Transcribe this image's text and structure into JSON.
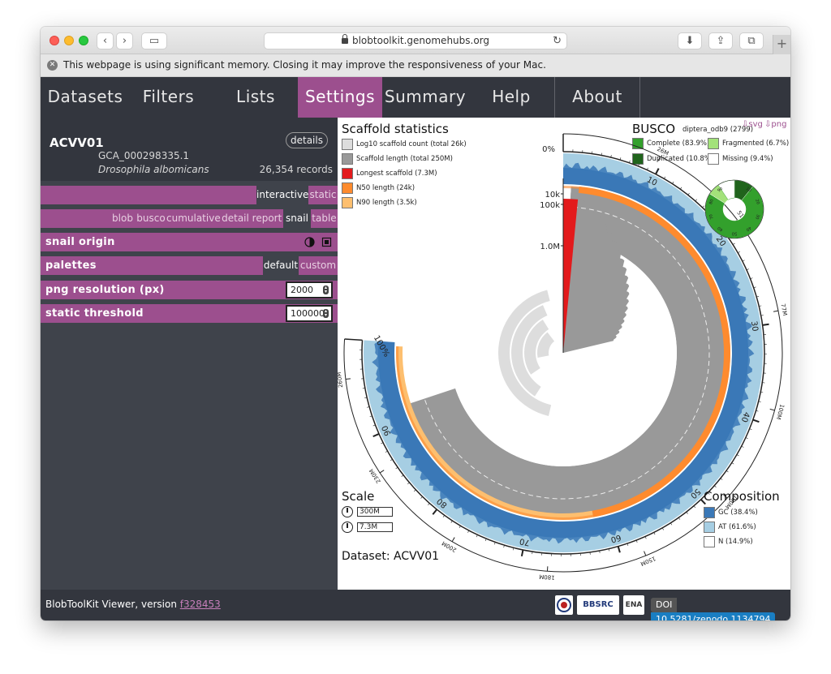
{
  "browser": {
    "url": "blobtoolkit.genomehubs.org",
    "warning": "This webpage is using significant memory. Closing it may improve the responsiveness of your Mac."
  },
  "nav": {
    "items": [
      "Datasets",
      "Filters",
      "Lists",
      "Settings",
      "Summary",
      "Help",
      "About"
    ],
    "active": "Settings"
  },
  "dataset": {
    "id": "ACVV01",
    "accession": "GCA_000298335.1",
    "species": "Drosophila albomicans",
    "records": "26,354 records",
    "details_label": "details"
  },
  "settings": {
    "view_mode": {
      "options": [
        "interactive",
        "static"
      ],
      "selected": "interactive"
    },
    "plot_types": {
      "options": [
        "blob",
        "busco",
        "cumulative",
        "detail",
        "report",
        "snail",
        "table"
      ],
      "selected": "snail"
    },
    "snail_origin": {
      "label": "snail origin"
    },
    "palettes": {
      "label": "palettes",
      "options": [
        "default",
        "custom"
      ],
      "selected": "default"
    },
    "png_resolution": {
      "label": "png resolution (px)",
      "value": "2000"
    },
    "static_threshold": {
      "label": "static threshold",
      "value": "100000"
    }
  },
  "plot": {
    "scaffold_title": "Scaffold statistics",
    "scaffold_legend": [
      {
        "label": "Log10 scaffold count (total 26k)",
        "color": "#dddddd"
      },
      {
        "label": "Scaffold length (total 250M)",
        "color": "#999999"
      },
      {
        "label": "Longest scaffold (7.3M)",
        "color": "#e31a1c"
      },
      {
        "label": "N50 length (24k)",
        "color": "#fe8b2e"
      },
      {
        "label": "N90 length (3.5k)",
        "color": "#fdbf6f"
      }
    ],
    "busco_title": "BUSCO",
    "busco_lineage": "diptera_odb9 (2799)",
    "busco_legend": [
      {
        "label": "Complete (83.9%)",
        "color": "#33a02c"
      },
      {
        "label": "Fragmented (6.7%)",
        "color": "#a3e27a"
      },
      {
        "label": "Duplicated (10.8%)",
        "color": "#20641c"
      },
      {
        "label": "Missing (9.4%)",
        "color": "#ffffff"
      }
    ],
    "busco_ticks": [
      "10",
      "20",
      "30",
      "40",
      "50",
      "60",
      "70",
      "80",
      "90"
    ],
    "export_svg": "⇩svg",
    "export_png": "⇩png",
    "radial_labels": [
      "10k",
      "100k",
      "1.0M"
    ],
    "percent_labels": [
      "0%",
      "100%"
    ],
    "outer_ticks": [
      "10",
      "20",
      "30",
      "40",
      "50",
      "60",
      "70",
      "80",
      "90"
    ],
    "length_ticks": [
      "26M",
      "51M",
      "77M",
      "100M",
      "130M",
      "150M",
      "180M",
      "200M",
      "230M",
      "260M"
    ],
    "scale_title": "Scale",
    "scale_values": [
      "300M",
      "7.3M"
    ],
    "composition_title": "Composition",
    "composition_legend": [
      {
        "label": "GC (38.4%)",
        "color": "#3a78b7"
      },
      {
        "label": "AT (61.6%)",
        "color": "#a6cee3"
      },
      {
        "label": "N (14.9%)",
        "color": "#ffffff"
      }
    ],
    "dataset_label": "Dataset: ACVV01"
  },
  "footer": {
    "viewer_text": "BlobToolKit Viewer, version",
    "version": "f328453",
    "logos": [
      "BBSRC",
      "ENA"
    ],
    "doi_key": "DOI",
    "doi_value": "10.5281/zenodo.1134794"
  },
  "colors": {
    "accent": "#9c4f8e",
    "nav_bg": "#33363e",
    "sidebar_bg": "#3f434b"
  }
}
